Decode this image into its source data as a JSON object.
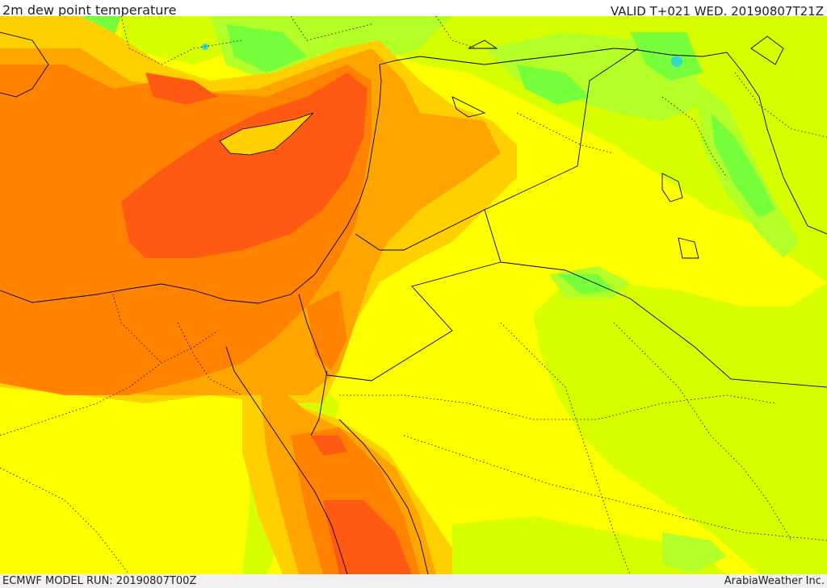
{
  "header": {
    "title": "2m dew point temperature",
    "valid": "VALID T+021 WED. 20190807T21Z"
  },
  "footer": {
    "model_run": "ECMWF MODEL RUN: 20190807T00Z",
    "credit": "ArabiaWeather Inc."
  },
  "map": {
    "palette": {
      "dark_orange": "#ff5a14",
      "orange": "#ff8200",
      "light_orange": "#ffa500",
      "amber": "#ffd000",
      "yellow": "#ffff00",
      "yellow_green": "#d7ff00",
      "light_green": "#b4ff28",
      "green": "#78ff3c",
      "cyan": "#32dcc8"
    },
    "boundary_color": "#000000"
  }
}
